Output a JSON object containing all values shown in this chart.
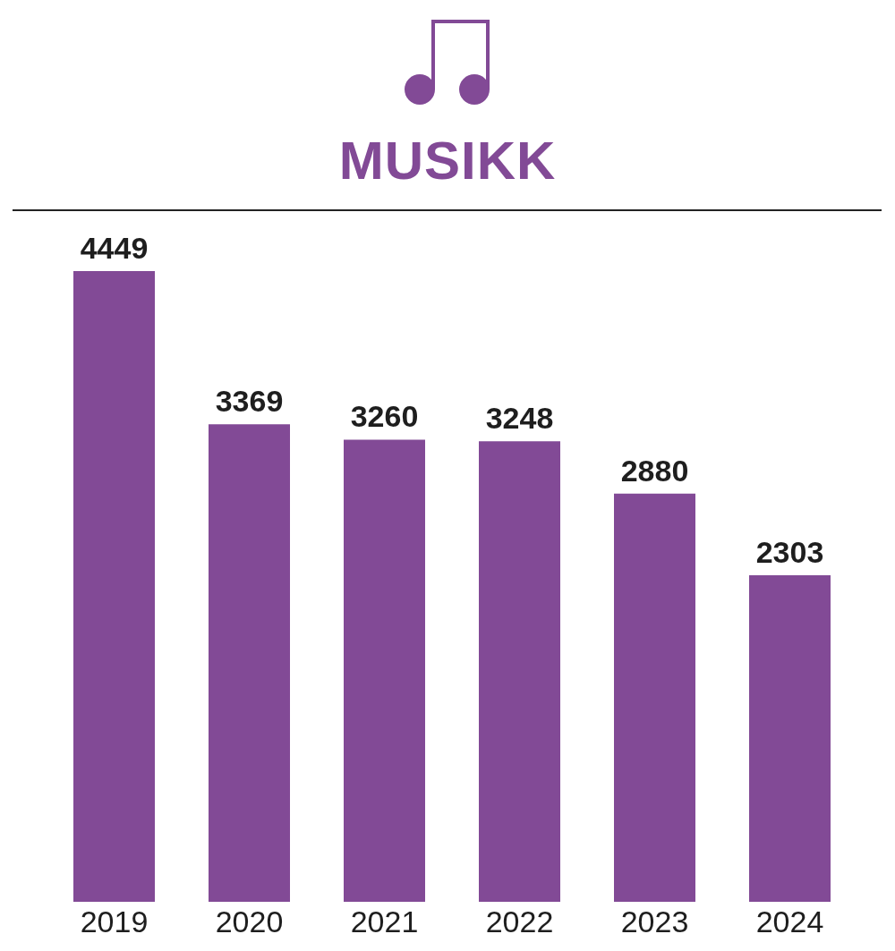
{
  "chart_data": {
    "type": "bar",
    "title": "MUSIKK",
    "categories": [
      "2019",
      "2020",
      "2021",
      "2022",
      "2023",
      "2024"
    ],
    "values": [
      4449,
      3369,
      3260,
      3248,
      2880,
      2303
    ],
    "color": "#824a96",
    "data_labels": true
  }
}
